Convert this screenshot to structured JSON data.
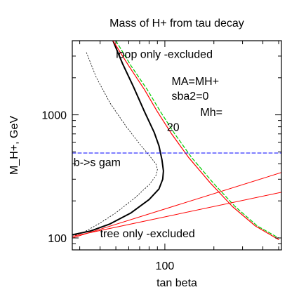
{
  "chart_data": {
    "type": "line",
    "title": "Mass of H+ from tau decay",
    "xlabel": "tan beta",
    "ylabel": "M_H+, GeV",
    "x_scale": "log",
    "y_scale": "log",
    "xlim": [
      27,
      520
    ],
    "ylim": [
      80,
      4000
    ],
    "x_ticks": [
      {
        "value": 100,
        "label": "100"
      }
    ],
    "y_ticks": [
      {
        "value": 100,
        "label": "100"
      },
      {
        "value": 1000,
        "label": "1000"
      }
    ],
    "grid": false,
    "series": [
      {
        "key": "black-solid",
        "color": "#000000",
        "style": "solid",
        "width": 2,
        "points": [
          [
            48,
            4000
          ],
          [
            55,
            2600
          ],
          [
            64,
            1700
          ],
          [
            75,
            1060
          ],
          [
            86,
            720
          ],
          [
            92,
            560
          ],
          [
            96,
            430
          ],
          [
            98,
            350
          ],
          [
            97,
            300
          ],
          [
            92,
            250
          ],
          [
            80,
            205
          ],
          [
            62,
            160
          ],
          [
            46,
            130
          ],
          [
            35,
            114
          ],
          [
            27,
            106
          ]
        ]
      },
      {
        "key": "black-dotted",
        "color": "#000000",
        "style": "dotted",
        "width": 0.8,
        "points": [
          [
            33,
            3200
          ],
          [
            38,
            2000
          ],
          [
            46,
            1250
          ],
          [
            58,
            800
          ],
          [
            70,
            580
          ],
          [
            80,
            470
          ],
          [
            88,
            400
          ],
          [
            90,
            360
          ],
          [
            88,
            320
          ],
          [
            80,
            270
          ],
          [
            65,
            210
          ],
          [
            50,
            160
          ],
          [
            40,
            132
          ],
          [
            32,
            112
          ],
          [
            27,
            103
          ]
        ]
      },
      {
        "key": "red-curve",
        "color": "#ff0000",
        "style": "solid",
        "width": 1.2,
        "points": [
          [
            48,
            4000
          ],
          [
            60,
            2500
          ],
          [
            75,
            1600
          ],
          [
            90,
            1060
          ],
          [
            110,
            700
          ],
          [
            140,
            450
          ],
          [
            190,
            280
          ],
          [
            260,
            180
          ],
          [
            360,
            125
          ],
          [
            500,
            97
          ]
        ]
      },
      {
        "key": "green-dashed",
        "color": "#00cc00",
        "style": "dashed",
        "width": 1.2,
        "points": [
          [
            50,
            4000
          ],
          [
            62,
            2500
          ],
          [
            78,
            1600
          ],
          [
            94,
            1060
          ],
          [
            115,
            700
          ],
          [
            146,
            450
          ],
          [
            198,
            280
          ],
          [
            270,
            180
          ],
          [
            370,
            125
          ],
          [
            500,
            100
          ]
        ]
      },
      {
        "key": "red-line-upper",
        "color": "#ff0000",
        "style": "solid",
        "width": 1.0,
        "points": [
          [
            27,
            100
          ],
          [
            520,
            340
          ]
        ]
      },
      {
        "key": "red-line-lower",
        "color": "#ff0000",
        "style": "solid",
        "width": 1.0,
        "points": [
          [
            27,
            103
          ],
          [
            520,
            235
          ]
        ]
      },
      {
        "key": "blue-dashed",
        "color": "#0000ff",
        "style": "dashed",
        "width": 1.0,
        "points": [
          [
            27,
            490
          ],
          [
            520,
            490
          ]
        ]
      }
    ],
    "annotations": [
      {
        "text": "loop only -excluded",
        "x": 50,
        "y": 2900
      },
      {
        "text": "MA=MH+",
        "x": 110,
        "y": 1750
      },
      {
        "text": "sba2=0",
        "x": 110,
        "y": 1330
      },
      {
        "text": "Mh=",
        "x": 165,
        "y": 980
      },
      {
        "text": "20",
        "x": 103,
        "y": 740
      },
      {
        "text": "b->s gam",
        "x": 27.5,
        "y": 385
      },
      {
        "text": "tree only -excluded",
        "x": 40,
        "y": 101
      }
    ]
  }
}
